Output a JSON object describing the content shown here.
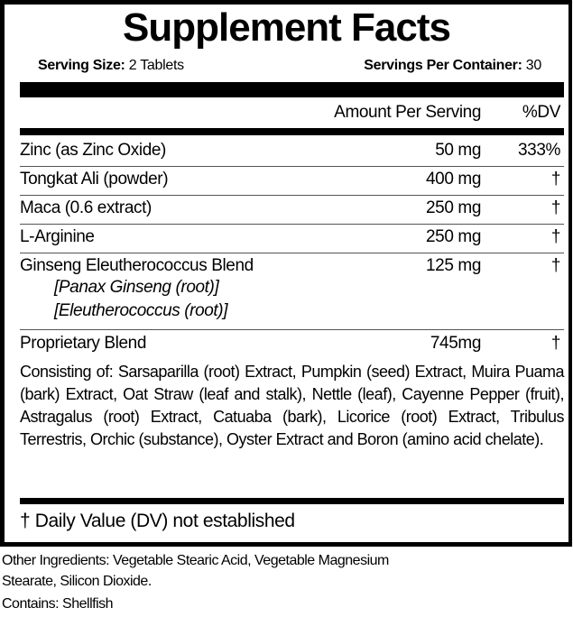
{
  "title": "Supplement Facts",
  "serving_size": {
    "label": "Serving Size:",
    "value": "2 Tablets"
  },
  "servings_per_container": {
    "label": "Servings Per Container:",
    "value": "30"
  },
  "header": {
    "amount": "Amount Per Serving",
    "dv": "%DV"
  },
  "rows": [
    {
      "name": "Zinc (as Zinc Oxide)",
      "amount": "50 mg",
      "dv": "333%"
    },
    {
      "name": "Tongkat Ali (powder)",
      "amount": "400 mg",
      "dv": "†"
    },
    {
      "name": "Maca (0.6 extract)",
      "amount": "250 mg",
      "dv": "†"
    },
    {
      "name": "L-Arginine",
      "amount": "250 mg",
      "dv": "†"
    },
    {
      "name": "Ginseng Eleutherococcus Blend",
      "amount": "125 mg",
      "dv": "†",
      "subs": [
        "[Panax Ginseng (root)]",
        "[Eleutherococcus (root)]"
      ]
    },
    {
      "name": "Proprietary Blend",
      "amount": "745mg",
      "dv": "†"
    }
  ],
  "blend_text": "Consisting of: Sarsaparilla (root) Extract, Pumpkin (seed) Extract, Muira Puama (bark) Extract, Oat Straw (leaf and stalk), Nettle (leaf), Cayenne Pepper (fruit), Astragalus (root) Extract, Catuaba (bark), Licorice (root) Extract, Tribulus Terrestris, Orchic (substance), Oyster Extract and Boron (amino acid chelate).",
  "footnote": "† Daily Value (DV) not established",
  "other_ingredients": "Other Ingredients: Vegetable Stearic Acid, Vegetable Magnesium Stearate, Silicon Dioxide.",
  "contains": "Contains: Shellfish"
}
